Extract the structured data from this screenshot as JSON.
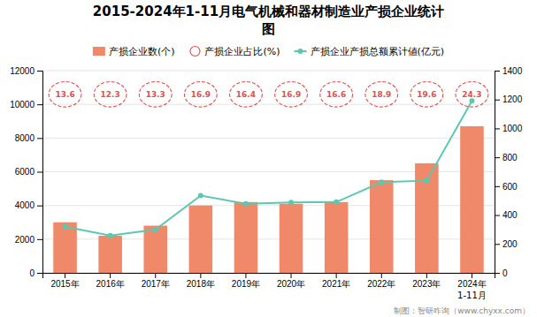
{
  "chart_data": {
    "type": "bar",
    "title": "2015-2024年1-11月电气机械和器材制造业产损企业统计",
    "subtitle": "图",
    "categories": [
      "2015年",
      "2016年",
      "2017年",
      "2018年",
      "2019年",
      "2020年",
      "2021年",
      "2022年",
      "2023年",
      "2024年"
    ],
    "series": [
      {
        "name": "产损企业数(个)",
        "type": "bar",
        "color": "#F0896A",
        "values": [
          3000,
          2200,
          2800,
          4000,
          4200,
          4100,
          4200,
          5500,
          6500,
          8700
        ]
      },
      {
        "name": "产损企业占比(%)",
        "type": "label",
        "marker": "circle",
        "line_style": "dashed",
        "color": "#E05050",
        "data_labels": true,
        "values": [
          13.6,
          12.3,
          13.3,
          16.9,
          16.4,
          16.9,
          16.6,
          18.9,
          19.6,
          24.3
        ]
      },
      {
        "name": "产损企业产损总额累计値(亿元)",
        "type": "line",
        "marker": "circle",
        "color": "#5BC8B0",
        "axis": "y2",
        "values": [
          320,
          258,
          300,
          535,
          478,
          488,
          490,
          628,
          638,
          1190
        ]
      }
    ],
    "ylim": [
      0,
      12000
    ],
    "yticks": [
      0,
      2000,
      4000,
      6000,
      8000,
      10000,
      12000
    ],
    "y2lim": [
      0,
      1400
    ],
    "y2ticks": [
      0,
      200,
      400,
      600,
      800,
      1000,
      1200,
      1400
    ],
    "grid": true,
    "legend": "top",
    "annotations": [
      "1-11月",
      "制图：智研咋询（www.chyxx.com）"
    ]
  }
}
